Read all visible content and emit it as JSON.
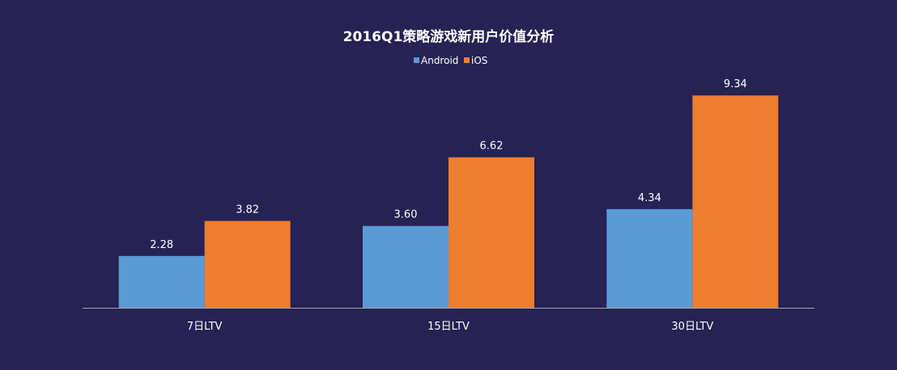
{
  "chart_data": {
    "type": "bar",
    "title": "2016Q1策略游戏新用户价值分析",
    "categories": [
      "7日LTV",
      "15日LTV",
      "30日LTV"
    ],
    "series": [
      {
        "name": "Android",
        "color": "#5B9BD5",
        "values": [
          2.28,
          3.6,
          4.34
        ]
      },
      {
        "name": "iOS",
        "color": "#ED7D31",
        "values": [
          3.82,
          6.62,
          9.34
        ]
      }
    ],
    "value_labels": {
      "Android": [
        "2.28",
        "3.60",
        "4.34"
      ],
      "iOS": [
        "3.82",
        "6.62",
        "9.34"
      ]
    },
    "ylim": [
      0,
      10
    ],
    "legend": "top-center",
    "grid": false,
    "background_color": "#262253",
    "text_color": "#FFFFFF",
    "axis_color": "#A6A6A6"
  }
}
